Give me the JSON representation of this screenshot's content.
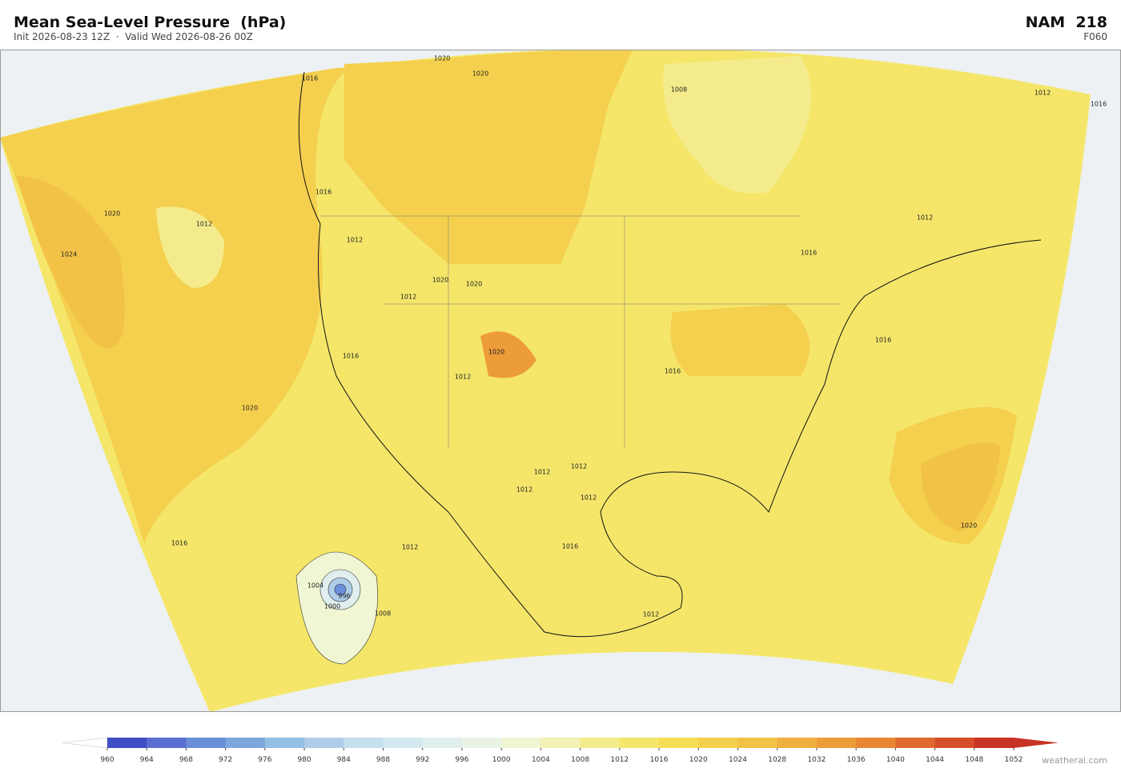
{
  "header": {
    "title": "Mean Sea-Level Pressure  (hPa)",
    "subtitle": "Init 2026-08-23 12Z  ·  Valid Wed 2026-08-26 00Z",
    "model": "NAM  218",
    "forecast_hour": "F060"
  },
  "contour_labels": [
    1020,
    1016,
    1020,
    1008,
    1012,
    1016,
    1020,
    1012,
    1024,
    1016,
    1012,
    1016,
    1012,
    1012,
    1020,
    1020,
    1020,
    1016,
    1016,
    1012,
    1016,
    1020,
    1012,
    1012,
    1012,
    1016,
    1012,
    1004,
    1000,
    1008,
    1012,
    1016,
    1020,
    1012,
    996
  ],
  "colorbar": {
    "ticks": [
      960,
      964,
      968,
      972,
      976,
      980,
      984,
      988,
      992,
      996,
      1000,
      1004,
      1008,
      1012,
      1016,
      1020,
      1024,
      1028,
      1032,
      1036,
      1040,
      1044,
      1048,
      1052
    ],
    "colors": [
      "#3f4fc4",
      "#5a6fd0",
      "#6a8fd8",
      "#7fa6dc",
      "#96bfe4",
      "#aecde9",
      "#c4dfee",
      "#d2e9ef",
      "#e0efee",
      "#e8f3e6",
      "#f0f5d3",
      "#f3f1b4",
      "#f4ec8c",
      "#f5e66a",
      "#f5dd56",
      "#f4d04e",
      "#f2c246",
      "#f0b040",
      "#ed9c3a",
      "#e88634",
      "#e0692e",
      "#d44e29",
      "#c73324"
    ],
    "under_color": "#ffffff",
    "over_color": "#c73324"
  },
  "footer": {
    "credit": "weatherai.com"
  }
}
